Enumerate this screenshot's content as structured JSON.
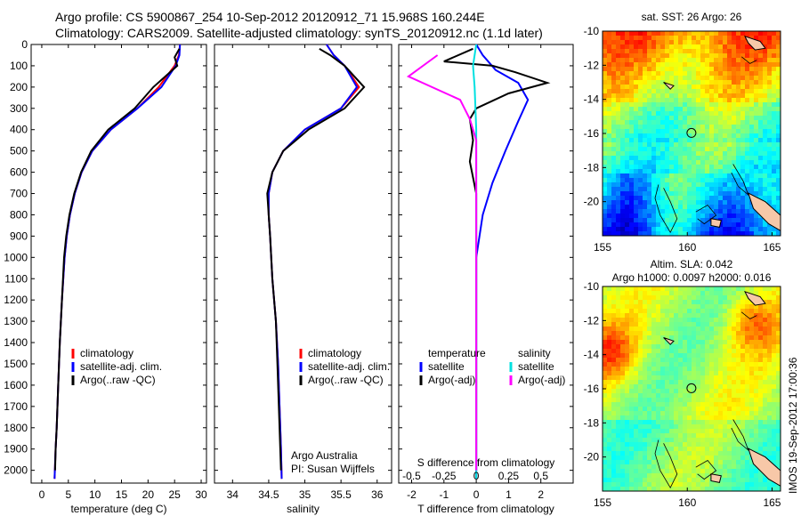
{
  "header": {
    "line1": "Argo profile: CS 5900867_254 10-Sep-2012 20120912_71 15.968S 160.244E",
    "line2": "Climatology: CARS2009. Satellite-adjusted climatology: synTS_20120912.nc (1.1d later)"
  },
  "stamp": "IMOS 19-Sep-2012 17:00:36",
  "colors": {
    "climatology": "#ff0000",
    "satellite": "#0000ff",
    "argo": "#000000",
    "sat_salinity": "#00e0e0",
    "argo_salinity": "#ff00ff"
  },
  "chart_data": [
    {
      "type": "line",
      "panel": "temperature",
      "xlabel": "temperature (deg C)",
      "xlim": [
        -2,
        31
      ],
      "xticks": [
        0,
        5,
        10,
        15,
        20,
        25,
        30
      ],
      "ylim": [
        2060,
        0
      ],
      "yticks": [
        0,
        100,
        200,
        300,
        400,
        500,
        600,
        700,
        800,
        900,
        1000,
        1100,
        1200,
        1300,
        1400,
        1500,
        1600,
        1700,
        1800,
        1900,
        2000
      ],
      "legend": [
        "climatology",
        "satellite-adj. clim.",
        "Argo(..raw -QC)"
      ],
      "series": [
        {
          "name": "climatology",
          "color": "#ff0000",
          "points": [
            [
              26,
              0
            ],
            [
              25.8,
              50
            ],
            [
              25,
              100
            ],
            [
              22,
              200
            ],
            [
              18,
              300
            ],
            [
              13,
              400
            ],
            [
              9.5,
              500
            ],
            [
              7.5,
              600
            ],
            [
              6.2,
              700
            ],
            [
              5.3,
              800
            ],
            [
              4.7,
              900
            ],
            [
              4.3,
              1000
            ],
            [
              3.8,
              1200
            ],
            [
              3.4,
              1400
            ],
            [
              3.1,
              1600
            ],
            [
              2.8,
              1800
            ],
            [
              2.6,
              1900
            ],
            [
              2.4,
              2040
            ]
          ]
        },
        {
          "name": "satellite-adj. clim.",
          "color": "#0000ff",
          "points": [
            [
              26,
              0
            ],
            [
              25.9,
              50
            ],
            [
              25.2,
              100
            ],
            [
              22.5,
              200
            ],
            [
              18,
              300
            ],
            [
              13,
              400
            ],
            [
              9.5,
              500
            ],
            [
              7.5,
              600
            ],
            [
              6.2,
              700
            ],
            [
              5.3,
              800
            ],
            [
              4.7,
              900
            ],
            [
              4.3,
              1000
            ],
            [
              3.8,
              1200
            ],
            [
              3.4,
              1400
            ],
            [
              3.1,
              1600
            ],
            [
              2.8,
              1800
            ],
            [
              2.6,
              1900
            ],
            [
              2.4,
              2040
            ]
          ]
        },
        {
          "name": "Argo(..raw -QC)",
          "color": "#000000",
          "points": [
            [
              25.9,
              20
            ],
            [
              25,
              60
            ],
            [
              25.5,
              100
            ],
            [
              21,
              200
            ],
            [
              17.5,
              300
            ],
            [
              12.5,
              400
            ],
            [
              9.3,
              500
            ],
            [
              7.4,
              600
            ],
            [
              6.1,
              700
            ],
            [
              5.2,
              800
            ],
            [
              4.6,
              900
            ],
            [
              4.2,
              1000
            ],
            [
              3.8,
              1200
            ],
            [
              3.4,
              1400
            ],
            [
              3.1,
              1600
            ],
            [
              2.8,
              1800
            ],
            [
              2.6,
              1900
            ],
            [
              2.5,
              2000
            ]
          ]
        }
      ]
    },
    {
      "type": "line",
      "panel": "salinity",
      "xlabel": "salinity",
      "xlim": [
        33.75,
        36.2
      ],
      "xticks": [
        34,
        34.5,
        35,
        35.5,
        36
      ],
      "ylim": [
        2060,
        0
      ],
      "legend": [
        "climatology",
        "satellite-adj. clim.",
        "Argo(..raw -QC)"
      ],
      "annotation": [
        "Argo Australia",
        "PI: Susan Wijffels"
      ],
      "series": [
        {
          "name": "climatology",
          "color": "#ff0000",
          "points": [
            [
              35.3,
              0
            ],
            [
              35.4,
              50
            ],
            [
              35.55,
              100
            ],
            [
              35.75,
              200
            ],
            [
              35.5,
              300
            ],
            [
              35.0,
              400
            ],
            [
              34.7,
              500
            ],
            [
              34.55,
              600
            ],
            [
              34.5,
              700
            ],
            [
              34.5,
              800
            ],
            [
              34.52,
              900
            ],
            [
              34.55,
              1100
            ],
            [
              34.6,
              1300
            ],
            [
              34.63,
              1500
            ],
            [
              34.65,
              1700
            ],
            [
              34.67,
              1900
            ],
            [
              34.68,
              2040
            ]
          ]
        },
        {
          "name": "satellite-adj. clim.",
          "color": "#0000ff",
          "points": [
            [
              35.3,
              0
            ],
            [
              35.4,
              50
            ],
            [
              35.55,
              100
            ],
            [
              35.72,
              200
            ],
            [
              35.5,
              300
            ],
            [
              35.0,
              400
            ],
            [
              34.7,
              500
            ],
            [
              34.55,
              600
            ],
            [
              34.5,
              700
            ],
            [
              34.5,
              800
            ],
            [
              34.52,
              900
            ],
            [
              34.55,
              1100
            ],
            [
              34.6,
              1300
            ],
            [
              34.63,
              1500
            ],
            [
              34.65,
              1700
            ],
            [
              34.67,
              1900
            ],
            [
              34.68,
              2040
            ]
          ]
        },
        {
          "name": "Argo(..raw -QC)",
          "color": "#000000",
          "points": [
            [
              35.2,
              20
            ],
            [
              35.35,
              50
            ],
            [
              35.55,
              100
            ],
            [
              35.82,
              200
            ],
            [
              35.55,
              300
            ],
            [
              35.05,
              400
            ],
            [
              34.7,
              500
            ],
            [
              34.55,
              600
            ],
            [
              34.48,
              700
            ],
            [
              34.5,
              800
            ],
            [
              34.52,
              900
            ],
            [
              34.55,
              1100
            ],
            [
              34.6,
              1300
            ],
            [
              34.62,
              1500
            ],
            [
              34.64,
              1700
            ],
            [
              34.66,
              1900
            ],
            [
              34.67,
              2000
            ]
          ]
        }
      ]
    },
    {
      "type": "line",
      "panel": "difference",
      "xlabel": "T difference from climatology",
      "xlabel_top": "S difference from climatology",
      "xlim": [
        -2.4,
        3.0
      ],
      "xticks": [
        -2,
        -1,
        0,
        1,
        2
      ],
      "sticks": [
        -0.5,
        -0.25,
        0,
        0.25,
        0.5
      ],
      "ylim": [
        2060,
        0
      ],
      "legend_left": [
        "temperature",
        "satellite",
        "Argo(-adj)"
      ],
      "legend_right": [
        "salinity",
        "satellite",
        "Argo(-adj)"
      ],
      "series": [
        {
          "name": "satellite",
          "quantity": "temperature",
          "color": "#0000ff",
          "points": [
            [
              0,
              0
            ],
            [
              0.2,
              50
            ],
            [
              0.6,
              120
            ],
            [
              1.3,
              180
            ],
            [
              1.6,
              260
            ],
            [
              1.3,
              360
            ],
            [
              0.9,
              500
            ],
            [
              0.5,
              650
            ],
            [
              0.2,
              800
            ],
            [
              0,
              1000
            ],
            [
              0,
              2040
            ]
          ]
        },
        {
          "name": "Argo(-adj)",
          "quantity": "temperature",
          "color": "#000000",
          "points": [
            [
              -0.1,
              20
            ],
            [
              -1.0,
              80
            ],
            [
              0.5,
              100
            ],
            [
              1.2,
              130
            ],
            [
              2.2,
              180
            ],
            [
              1.0,
              230
            ],
            [
              0,
              300
            ],
            [
              -0.2,
              350
            ],
            [
              -0.1,
              450
            ],
            [
              -0.2,
              550
            ],
            [
              0,
              700
            ],
            [
              0,
              2000
            ]
          ]
        },
        {
          "name": "satellite",
          "quantity": "salinity",
          "color": "#00e0e0",
          "points": [
            [
              0,
              0
            ],
            [
              -0.1,
              100
            ],
            [
              -0.05,
              200
            ],
            [
              0,
              400
            ],
            [
              0,
              2040
            ]
          ]
        },
        {
          "name": "Argo(-adj)",
          "quantity": "salinity",
          "color": "#ff00ff",
          "points": [
            [
              -1.2,
              50
            ],
            [
              -2.1,
              150
            ],
            [
              -0.5,
              260
            ],
            [
              -0.2,
              350
            ],
            [
              0,
              450
            ],
            [
              0,
              2000
            ]
          ]
        }
      ]
    },
    {
      "type": "heatmap",
      "panel": "sst_map",
      "title": "sat. SST: 26  Argo: 26",
      "xlim": [
        155,
        165.5
      ],
      "ylim": [
        -22,
        -10
      ],
      "xticks": [
        155,
        160,
        165
      ],
      "yticks": [
        -10,
        -12,
        -14,
        -16,
        -18,
        -20
      ],
      "marker": [
        160.244,
        -15.968
      ]
    },
    {
      "type": "heatmap",
      "panel": "sla_map",
      "title": "Altim. SLA: 0.042",
      "subtitle": "Argo h1000: 0.0097  h2000: 0.016",
      "xlim": [
        155,
        165.5
      ],
      "ylim": [
        -22,
        -10
      ],
      "xticks": [
        155,
        160,
        165
      ],
      "yticks": [
        -10,
        -12,
        -14,
        -16,
        -18,
        -20
      ],
      "marker": [
        160.244,
        -15.968
      ]
    }
  ]
}
